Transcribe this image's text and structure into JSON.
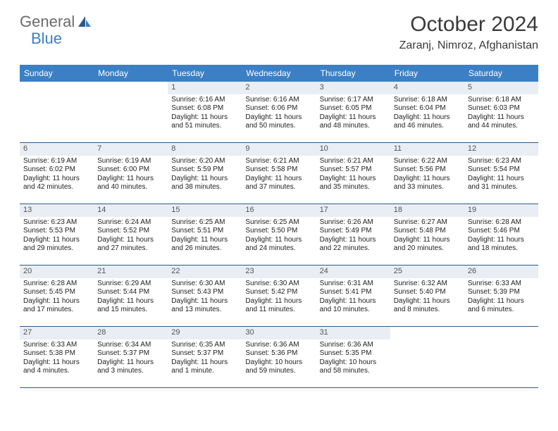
{
  "logo": {
    "word1": "General",
    "word2": "Blue"
  },
  "title": "October 2024",
  "location": "Zaranj, Nimroz, Afghanistan",
  "colors": {
    "header_bg": "#3b7fc4",
    "numrow_bg": "#e8eef3",
    "week_border": "#2a5a8a",
    "text": "#222222",
    "title_text": "#3a3a3a",
    "logo_gray": "#6b6b6b"
  },
  "dayNames": [
    "Sunday",
    "Monday",
    "Tuesday",
    "Wednesday",
    "Thursday",
    "Friday",
    "Saturday"
  ],
  "cells": [
    {
      "n": "",
      "sr": "",
      "ss": "",
      "d1": "",
      "d2": ""
    },
    {
      "n": "",
      "sr": "",
      "ss": "",
      "d1": "",
      "d2": ""
    },
    {
      "n": "1",
      "sr": "Sunrise: 6:16 AM",
      "ss": "Sunset: 6:08 PM",
      "d1": "Daylight: 11 hours",
      "d2": "and 51 minutes."
    },
    {
      "n": "2",
      "sr": "Sunrise: 6:16 AM",
      "ss": "Sunset: 6:06 PM",
      "d1": "Daylight: 11 hours",
      "d2": "and 50 minutes."
    },
    {
      "n": "3",
      "sr": "Sunrise: 6:17 AM",
      "ss": "Sunset: 6:05 PM",
      "d1": "Daylight: 11 hours",
      "d2": "and 48 minutes."
    },
    {
      "n": "4",
      "sr": "Sunrise: 6:18 AM",
      "ss": "Sunset: 6:04 PM",
      "d1": "Daylight: 11 hours",
      "d2": "and 46 minutes."
    },
    {
      "n": "5",
      "sr": "Sunrise: 6:18 AM",
      "ss": "Sunset: 6:03 PM",
      "d1": "Daylight: 11 hours",
      "d2": "and 44 minutes."
    },
    {
      "n": "6",
      "sr": "Sunrise: 6:19 AM",
      "ss": "Sunset: 6:02 PM",
      "d1": "Daylight: 11 hours",
      "d2": "and 42 minutes."
    },
    {
      "n": "7",
      "sr": "Sunrise: 6:19 AM",
      "ss": "Sunset: 6:00 PM",
      "d1": "Daylight: 11 hours",
      "d2": "and 40 minutes."
    },
    {
      "n": "8",
      "sr": "Sunrise: 6:20 AM",
      "ss": "Sunset: 5:59 PM",
      "d1": "Daylight: 11 hours",
      "d2": "and 38 minutes."
    },
    {
      "n": "9",
      "sr": "Sunrise: 6:21 AM",
      "ss": "Sunset: 5:58 PM",
      "d1": "Daylight: 11 hours",
      "d2": "and 37 minutes."
    },
    {
      "n": "10",
      "sr": "Sunrise: 6:21 AM",
      "ss": "Sunset: 5:57 PM",
      "d1": "Daylight: 11 hours",
      "d2": "and 35 minutes."
    },
    {
      "n": "11",
      "sr": "Sunrise: 6:22 AM",
      "ss": "Sunset: 5:56 PM",
      "d1": "Daylight: 11 hours",
      "d2": "and 33 minutes."
    },
    {
      "n": "12",
      "sr": "Sunrise: 6:23 AM",
      "ss": "Sunset: 5:54 PM",
      "d1": "Daylight: 11 hours",
      "d2": "and 31 minutes."
    },
    {
      "n": "13",
      "sr": "Sunrise: 6:23 AM",
      "ss": "Sunset: 5:53 PM",
      "d1": "Daylight: 11 hours",
      "d2": "and 29 minutes."
    },
    {
      "n": "14",
      "sr": "Sunrise: 6:24 AM",
      "ss": "Sunset: 5:52 PM",
      "d1": "Daylight: 11 hours",
      "d2": "and 27 minutes."
    },
    {
      "n": "15",
      "sr": "Sunrise: 6:25 AM",
      "ss": "Sunset: 5:51 PM",
      "d1": "Daylight: 11 hours",
      "d2": "and 26 minutes."
    },
    {
      "n": "16",
      "sr": "Sunrise: 6:25 AM",
      "ss": "Sunset: 5:50 PM",
      "d1": "Daylight: 11 hours",
      "d2": "and 24 minutes."
    },
    {
      "n": "17",
      "sr": "Sunrise: 6:26 AM",
      "ss": "Sunset: 5:49 PM",
      "d1": "Daylight: 11 hours",
      "d2": "and 22 minutes."
    },
    {
      "n": "18",
      "sr": "Sunrise: 6:27 AM",
      "ss": "Sunset: 5:48 PM",
      "d1": "Daylight: 11 hours",
      "d2": "and 20 minutes."
    },
    {
      "n": "19",
      "sr": "Sunrise: 6:28 AM",
      "ss": "Sunset: 5:46 PM",
      "d1": "Daylight: 11 hours",
      "d2": "and 18 minutes."
    },
    {
      "n": "20",
      "sr": "Sunrise: 6:28 AM",
      "ss": "Sunset: 5:45 PM",
      "d1": "Daylight: 11 hours",
      "d2": "and 17 minutes."
    },
    {
      "n": "21",
      "sr": "Sunrise: 6:29 AM",
      "ss": "Sunset: 5:44 PM",
      "d1": "Daylight: 11 hours",
      "d2": "and 15 minutes."
    },
    {
      "n": "22",
      "sr": "Sunrise: 6:30 AM",
      "ss": "Sunset: 5:43 PM",
      "d1": "Daylight: 11 hours",
      "d2": "and 13 minutes."
    },
    {
      "n": "23",
      "sr": "Sunrise: 6:30 AM",
      "ss": "Sunset: 5:42 PM",
      "d1": "Daylight: 11 hours",
      "d2": "and 11 minutes."
    },
    {
      "n": "24",
      "sr": "Sunrise: 6:31 AM",
      "ss": "Sunset: 5:41 PM",
      "d1": "Daylight: 11 hours",
      "d2": "and 10 minutes."
    },
    {
      "n": "25",
      "sr": "Sunrise: 6:32 AM",
      "ss": "Sunset: 5:40 PM",
      "d1": "Daylight: 11 hours",
      "d2": "and 8 minutes."
    },
    {
      "n": "26",
      "sr": "Sunrise: 6:33 AM",
      "ss": "Sunset: 5:39 PM",
      "d1": "Daylight: 11 hours",
      "d2": "and 6 minutes."
    },
    {
      "n": "27",
      "sr": "Sunrise: 6:33 AM",
      "ss": "Sunset: 5:38 PM",
      "d1": "Daylight: 11 hours",
      "d2": "and 4 minutes."
    },
    {
      "n": "28",
      "sr": "Sunrise: 6:34 AM",
      "ss": "Sunset: 5:37 PM",
      "d1": "Daylight: 11 hours",
      "d2": "and 3 minutes."
    },
    {
      "n": "29",
      "sr": "Sunrise: 6:35 AM",
      "ss": "Sunset: 5:37 PM",
      "d1": "Daylight: 11 hours",
      "d2": "and 1 minute."
    },
    {
      "n": "30",
      "sr": "Sunrise: 6:36 AM",
      "ss": "Sunset: 5:36 PM",
      "d1": "Daylight: 10 hours",
      "d2": "and 59 minutes."
    },
    {
      "n": "31",
      "sr": "Sunrise: 6:36 AM",
      "ss": "Sunset: 5:35 PM",
      "d1": "Daylight: 10 hours",
      "d2": "and 58 minutes."
    },
    {
      "n": "",
      "sr": "",
      "ss": "",
      "d1": "",
      "d2": ""
    },
    {
      "n": "",
      "sr": "",
      "ss": "",
      "d1": "",
      "d2": ""
    }
  ]
}
